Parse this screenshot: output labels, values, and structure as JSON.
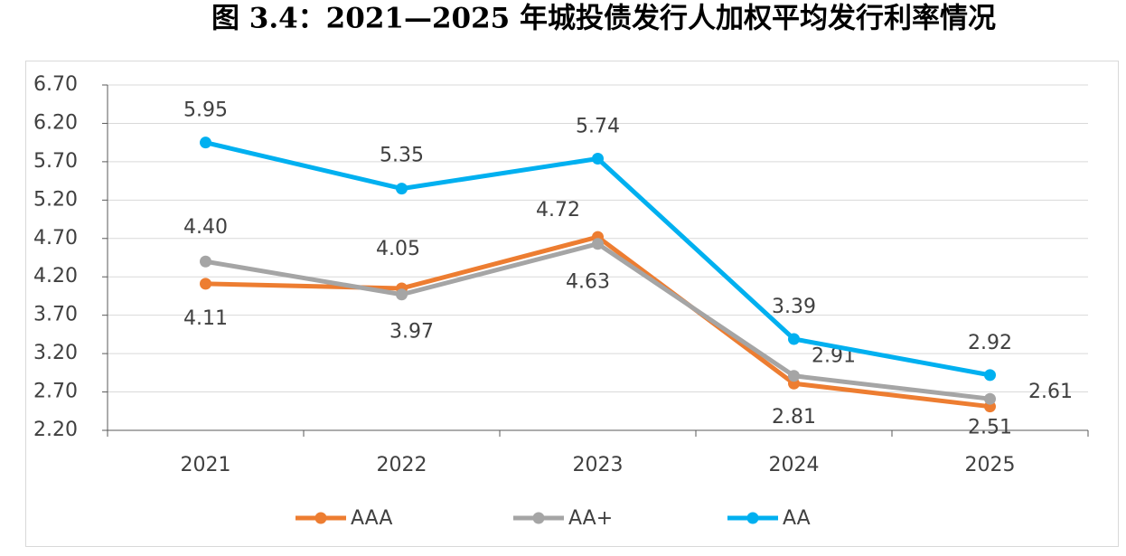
{
  "chart_data": {
    "type": "line",
    "title": "图 3.4：2021—2025 年城投债发行人加权平均发行利率情况",
    "categories": [
      "2021",
      "2022",
      "2023",
      "2024",
      "2025"
    ],
    "ylim": [
      2.2,
      6.7
    ],
    "yticks": [
      {
        "value": 2.2,
        "label": "2.20"
      },
      {
        "value": 2.7,
        "label": "2.70"
      },
      {
        "value": 3.2,
        "label": "3.20"
      },
      {
        "value": 3.7,
        "label": "3.70"
      },
      {
        "value": 4.2,
        "label": "4.20"
      },
      {
        "value": 4.7,
        "label": "4.70"
      },
      {
        "value": 5.2,
        "label": "5.20"
      },
      {
        "value": 5.7,
        "label": "5.70"
      },
      {
        "value": 6.2,
        "label": "6.20"
      },
      {
        "value": 6.7,
        "label": "6.70"
      }
    ],
    "grid": true,
    "legend": "bottom",
    "series": [
      {
        "name": "AAA",
        "color": "#ed7d31",
        "values": [
          4.11,
          4.05,
          4.72,
          2.81,
          2.51
        ],
        "value_labels": [
          "4.11",
          "4.05",
          "4.72",
          "2.81",
          "2.51"
        ]
      },
      {
        "name": "AA+",
        "color": "#a5a5a5",
        "values": [
          4.4,
          3.97,
          4.63,
          2.91,
          2.61
        ],
        "value_labels": [
          "4.40",
          "3.97",
          "4.63",
          "2.91",
          "2.61"
        ]
      },
      {
        "name": "AA",
        "color": "#00b0f0",
        "values": [
          5.95,
          5.35,
          5.74,
          3.39,
          2.92
        ],
        "value_labels": [
          "5.95",
          "5.35",
          "5.74",
          "3.39",
          "2.92"
        ]
      }
    ]
  }
}
